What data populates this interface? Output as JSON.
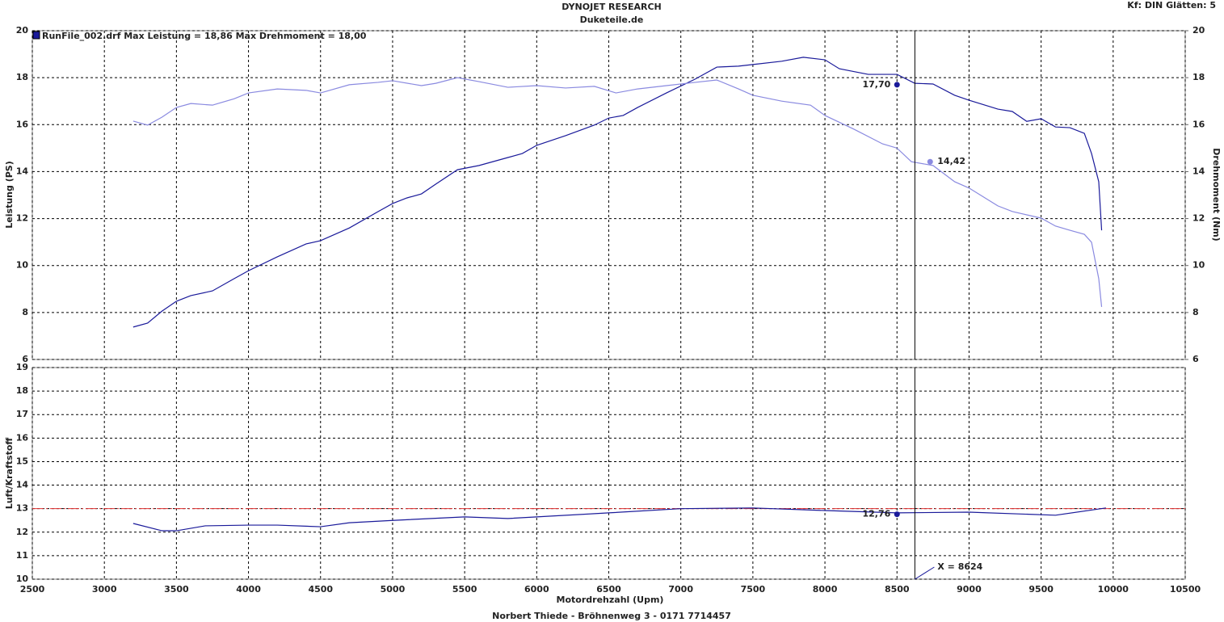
{
  "chart_data": [
    {
      "type": "line",
      "title": "DYNOJET RESEARCH",
      "subtitle": "Duketeile.de",
      "note": "Kf: DIN  Glätten: 5",
      "legend": "RunFile_002.drf Max Leistung = 18,86    Max Drehmoment = 18,00",
      "ylabel": "Leistung (PS)",
      "y2label": "Drehmoment (Nm)",
      "xlim": [
        2500,
        10500
      ],
      "ylim": [
        6,
        20
      ],
      "yticks": [
        6,
        8,
        10,
        12,
        14,
        16,
        18,
        20
      ],
      "y2lim": [
        6,
        20
      ],
      "y2ticks": [
        6,
        8,
        10,
        12,
        14,
        16,
        18,
        20
      ],
      "grid": true,
      "cursor": {
        "value": 8624,
        "label": "X = 8624"
      },
      "series": [
        {
          "color": "#1a1a9a",
          "x": [
            3200,
            3300,
            3400,
            3500,
            3600,
            3750,
            3900,
            4000,
            4200,
            4400,
            4500,
            4700,
            4900,
            5000,
            5100,
            5200,
            5300,
            5450,
            5600,
            5800,
            5900,
            6000,
            6200,
            6400,
            6500,
            6600,
            6700,
            6900,
            7100,
            7250,
            7400,
            7500,
            7700,
            7850,
            8000,
            8100,
            8300,
            8500,
            8624,
            8750,
            8900,
            9000,
            9200,
            9300,
            9400,
            9500,
            9600,
            9700,
            9800,
            9850,
            9900,
            9920
          ],
          "values": [
            7.38,
            7.55,
            8.06,
            8.48,
            8.72,
            8.92,
            9.44,
            9.78,
            10.37,
            10.92,
            11.06,
            11.6,
            12.3,
            12.64,
            12.88,
            13.05,
            13.47,
            14.08,
            14.26,
            14.6,
            14.77,
            15.12,
            15.53,
            15.98,
            16.28,
            16.39,
            16.73,
            17.35,
            17.94,
            18.45,
            18.49,
            18.56,
            18.7,
            18.87,
            18.76,
            18.38,
            18.14,
            18.14,
            17.76,
            17.73,
            17.25,
            17.04,
            16.66,
            16.56,
            16.14,
            16.25,
            15.9,
            15.87,
            15.63,
            14.77,
            13.57,
            11.5
          ],
          "marker": {
            "x": 8500,
            "value": 17.7,
            "label": "17,70"
          }
        },
        {
          "color": "#8a8ae0",
          "axis": "y2",
          "x": [
            3200,
            3300,
            3400,
            3500,
            3600,
            3750,
            3900,
            4000,
            4200,
            4400,
            4500,
            4700,
            4900,
            5000,
            5200,
            5300,
            5450,
            5600,
            5800,
            6000,
            6200,
            6400,
            6550,
            6700,
            6900,
            7100,
            7250,
            7400,
            7500,
            7700,
            7900,
            8000,
            8200,
            8400,
            8500,
            8600,
            8750,
            8900,
            9000,
            9200,
            9300,
            9500,
            9600,
            9700,
            9800,
            9850,
            9900,
            9920
          ],
          "values": [
            16.15,
            15.98,
            16.32,
            16.73,
            16.9,
            16.83,
            17.1,
            17.35,
            17.52,
            17.46,
            17.35,
            17.7,
            17.8,
            17.87,
            17.66,
            17.76,
            18.0,
            17.83,
            17.59,
            17.66,
            17.56,
            17.63,
            17.35,
            17.52,
            17.66,
            17.8,
            17.9,
            17.52,
            17.25,
            17.0,
            16.83,
            16.39,
            15.81,
            15.18,
            15.0,
            14.42,
            14.26,
            13.57,
            13.3,
            12.54,
            12.3,
            12.02,
            11.68,
            11.5,
            11.33,
            10.99,
            9.44,
            8.24
          ],
          "marker": {
            "x": 8730,
            "value": 14.42,
            "label": "14,42"
          }
        }
      ]
    },
    {
      "type": "line",
      "ylabel": "Luft/Kraftstoff",
      "xlabel": "Motordrehzahl (Upm)",
      "footer": "Norbert Thiede - Bröhnenweg 3 - 0171 7714457",
      "xlim": [
        2500,
        10500
      ],
      "xticks": [
        2500,
        3000,
        3500,
        4000,
        4500,
        5000,
        5500,
        6000,
        6500,
        7000,
        7500,
        8000,
        8500,
        9000,
        9500,
        10000,
        10500
      ],
      "ylim": [
        10,
        19
      ],
      "yticks": [
        10,
        11,
        12,
        13,
        14,
        15,
        16,
        17,
        18,
        19
      ],
      "grid": true,
      "reference_line": {
        "value": 13,
        "color": "#e03030"
      },
      "series": [
        {
          "color": "#1a1a9a",
          "x": [
            3200,
            3400,
            3500,
            3700,
            4000,
            4200,
            4500,
            4700,
            5000,
            5500,
            5800,
            6000,
            6500,
            7000,
            7500,
            8000,
            8500,
            9000,
            9600,
            9950
          ],
          "values": [
            12.37,
            12.06,
            12.06,
            12.27,
            12.3,
            12.3,
            12.23,
            12.4,
            12.5,
            12.65,
            12.58,
            12.65,
            12.82,
            13.0,
            13.03,
            12.92,
            12.82,
            12.85,
            12.72,
            13.03
          ],
          "marker": {
            "x": 8500,
            "value": 12.76,
            "label": "12,76"
          }
        }
      ]
    }
  ]
}
